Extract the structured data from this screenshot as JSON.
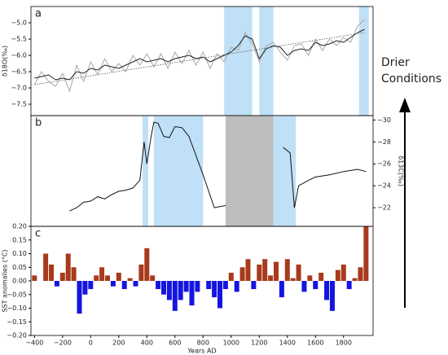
{
  "chart_data": [
    {
      "type": "line",
      "panel_label": "a",
      "ylabel": "δ18O(‰)",
      "xlim": [
        -425,
        2010
      ],
      "ylim": [
        -7.85,
        -4.5
      ],
      "yticks": [
        {
          "value": -7.5,
          "label": "−7.5"
        },
        {
          "value": -7.0,
          "label": "−7.0"
        },
        {
          "value": -6.5,
          "label": "−6.5"
        },
        {
          "value": -6.0,
          "label": "−6.0"
        },
        {
          "value": -5.5,
          "label": "−5.5"
        },
        {
          "value": -5.0,
          "label": "−5.0"
        }
      ],
      "shading": [
        {
          "range": [
            950,
            1150
          ],
          "color": "#bfe0f7"
        },
        {
          "range": [
            1200,
            1300
          ],
          "color": "#bfe0f7"
        },
        {
          "range": [
            1910,
            1980
          ],
          "color": "#bfe0f7"
        }
      ],
      "series": [
        {
          "color": "#a8a8a8",
          "style": "solid",
          "x": [
            -400,
            -350,
            -300,
            -250,
            -200,
            -150,
            -100,
            -50,
            0,
            50,
            100,
            150,
            200,
            250,
            300,
            350,
            400,
            450,
            500,
            550,
            600,
            650,
            700,
            750,
            800,
            850,
            900,
            950,
            1000,
            1050,
            1100,
            1150,
            1200,
            1250,
            1300,
            1350,
            1400,
            1450,
            1500,
            1550,
            1600,
            1650,
            1700,
            1750,
            1800,
            1850,
            1900,
            1950
          ],
          "values": [
            -6.9,
            -6.5,
            -6.8,
            -6.95,
            -6.55,
            -7.1,
            -6.3,
            -6.8,
            -6.2,
            -6.6,
            -6.1,
            -6.5,
            -6.25,
            -6.5,
            -6.0,
            -6.3,
            -5.95,
            -6.35,
            -5.95,
            -6.4,
            -5.9,
            -6.25,
            -5.85,
            -6.3,
            -5.9,
            -6.4,
            -5.95,
            -6.2,
            -5.75,
            -5.85,
            -5.3,
            -5.65,
            -6.2,
            -5.7,
            -5.6,
            -5.9,
            -6.15,
            -5.7,
            -5.65,
            -6.0,
            -5.5,
            -5.85,
            -5.5,
            -5.7,
            -5.45,
            -5.6,
            -5.1,
            -4.9
          ]
        },
        {
          "color": "#222222",
          "style": "solid",
          "x": [
            -400,
            -350,
            -300,
            -250,
            -200,
            -150,
            -100,
            -50,
            0,
            50,
            100,
            150,
            200,
            250,
            300,
            350,
            400,
            450,
            500,
            550,
            600,
            650,
            700,
            750,
            800,
            850,
            900,
            950,
            1000,
            1050,
            1100,
            1150,
            1200,
            1250,
            1300,
            1350,
            1400,
            1450,
            1500,
            1550,
            1600,
            1650,
            1700,
            1750,
            1800,
            1850,
            1900,
            1950
          ],
          "values": [
            -6.7,
            -6.65,
            -6.6,
            -6.75,
            -6.7,
            -6.75,
            -6.5,
            -6.55,
            -6.4,
            -6.45,
            -6.3,
            -6.35,
            -6.4,
            -6.3,
            -6.2,
            -6.1,
            -6.2,
            -6.15,
            -6.1,
            -6.2,
            -6.1,
            -6.05,
            -6.0,
            -6.1,
            -6.05,
            -6.2,
            -6.1,
            -6.0,
            -5.9,
            -5.7,
            -5.4,
            -5.5,
            -6.1,
            -5.8,
            -5.7,
            -5.75,
            -6.0,
            -5.85,
            -5.8,
            -5.85,
            -5.6,
            -5.7,
            -5.65,
            -5.55,
            -5.6,
            -5.45,
            -5.3,
            -5.2
          ]
        },
        {
          "color": "#555555",
          "style": "dotted",
          "x": [
            -400,
            1950
          ],
          "values": [
            -6.9,
            -5.3
          ]
        }
      ]
    },
    {
      "type": "line",
      "panel_label": "b",
      "ylabel": "δ13C(‰)",
      "xlim": [
        -425,
        2010
      ],
      "y2lim": [
        -20.3,
        -30.4
      ],
      "y2ticks": [
        {
          "value": -30,
          "label": "−30"
        },
        {
          "value": -28,
          "label": "−28"
        },
        {
          "value": -26,
          "label": "−26"
        },
        {
          "value": -24,
          "label": "−24"
        },
        {
          "value": -22,
          "label": "−22"
        }
      ],
      "shading": [
        {
          "range": [
            370,
            410
          ],
          "color": "#bfe0f7"
        },
        {
          "range": [
            450,
            800
          ],
          "color": "#bfe0f7"
        },
        {
          "range": [
            960,
            1300
          ],
          "color": "#bdbdbd"
        },
        {
          "range": [
            1300,
            1460
          ],
          "color": "#bfe0f7"
        }
      ],
      "series": [
        {
          "color": "#111111",
          "style": "solid",
          "axis": "y2",
          "x": [
            -150,
            -100,
            -50,
            0,
            50,
            100,
            150,
            200,
            250,
            300,
            350,
            380,
            400,
            430,
            450,
            480,
            520,
            560,
            600,
            650,
            700,
            800,
            880,
            960,
            1300,
            1370,
            1420,
            1450,
            1480,
            1550,
            1600,
            1700,
            1800,
            1900,
            1960
          ],
          "values": [
            -21.7,
            -22,
            -22.5,
            -22.6,
            -23,
            -22.8,
            -23.2,
            -23.5,
            -23.6,
            -23.8,
            -24.5,
            -28,
            -26,
            -28.5,
            -29.8,
            -29.7,
            -28.5,
            -28.4,
            -29.4,
            -29.3,
            -28.5,
            -25,
            -22,
            -22.2,
            null,
            -27.5,
            -27,
            -22,
            -24,
            -24.5,
            -24.8,
            -25,
            -25.3,
            -25.5,
            -25.3
          ]
        }
      ]
    },
    {
      "type": "bar",
      "panel_label": "c",
      "ylabel": "SST anomalies (°C)",
      "xlabel": "Years AD",
      "xlim": [
        -425,
        2010
      ],
      "ylim": [
        -0.2,
        0.2
      ],
      "xticks": [
        {
          "value": -400,
          "label": "−400"
        },
        {
          "value": -200,
          "label": "−200"
        },
        0,
        200,
        400,
        600,
        800,
        1000,
        1200,
        1400,
        1600,
        1800
      ],
      "yticks": [
        {
          "value": -0.2,
          "label": "−0.20"
        },
        {
          "value": -0.15,
          "label": "−0.15"
        },
        {
          "value": -0.1,
          "label": "−0.10"
        },
        {
          "value": -0.05,
          "label": "−0.05"
        },
        {
          "value": 0,
          "label": "0.00"
        },
        {
          "value": 0.05,
          "label": "0.05"
        },
        {
          "value": 0.1,
          "label": "0.10"
        },
        {
          "value": 0.15,
          "label": "0.15"
        },
        {
          "value": 0.2,
          "label": "0.20"
        }
      ],
      "positive_color": "#a83a1c",
      "negative_color": "#1515e0",
      "x": [
        -400,
        -360,
        -320,
        -280,
        -240,
        -200,
        -160,
        -120,
        -80,
        -40,
        0,
        40,
        80,
        120,
        160,
        200,
        240,
        280,
        320,
        360,
        400,
        440,
        480,
        520,
        560,
        600,
        640,
        680,
        720,
        760,
        800,
        840,
        880,
        920,
        960,
        1000,
        1040,
        1080,
        1120,
        1160,
        1200,
        1240,
        1280,
        1320,
        1360,
        1400,
        1440,
        1480,
        1520,
        1560,
        1600,
        1640,
        1680,
        1720,
        1760,
        1800,
        1840,
        1880,
        1920,
        1960
      ],
      "values": [
        0.02,
        0.0,
        0.1,
        0.06,
        -0.02,
        0.03,
        0.1,
        0.05,
        -0.12,
        -0.05,
        -0.03,
        0.02,
        0.05,
        0.02,
        -0.02,
        0.03,
        -0.03,
        0.01,
        -0.02,
        0.06,
        0.12,
        0.02,
        -0.03,
        -0.05,
        -0.07,
        -0.11,
        -0.07,
        -0.04,
        -0.09,
        -0.04,
        0.0,
        -0.03,
        -0.06,
        -0.1,
        -0.03,
        0.03,
        -0.04,
        0.05,
        0.08,
        -0.03,
        0.06,
        0.08,
        0.02,
        0.07,
        -0.06,
        0.08,
        0.01,
        0.06,
        -0.04,
        0.02,
        -0.03,
        0.03,
        -0.07,
        -0.11,
        0.04,
        0.06,
        -0.03,
        0.01,
        0.05,
        0.2
      ]
    }
  ],
  "annotation": [
    "Drier",
    "Conditions"
  ]
}
